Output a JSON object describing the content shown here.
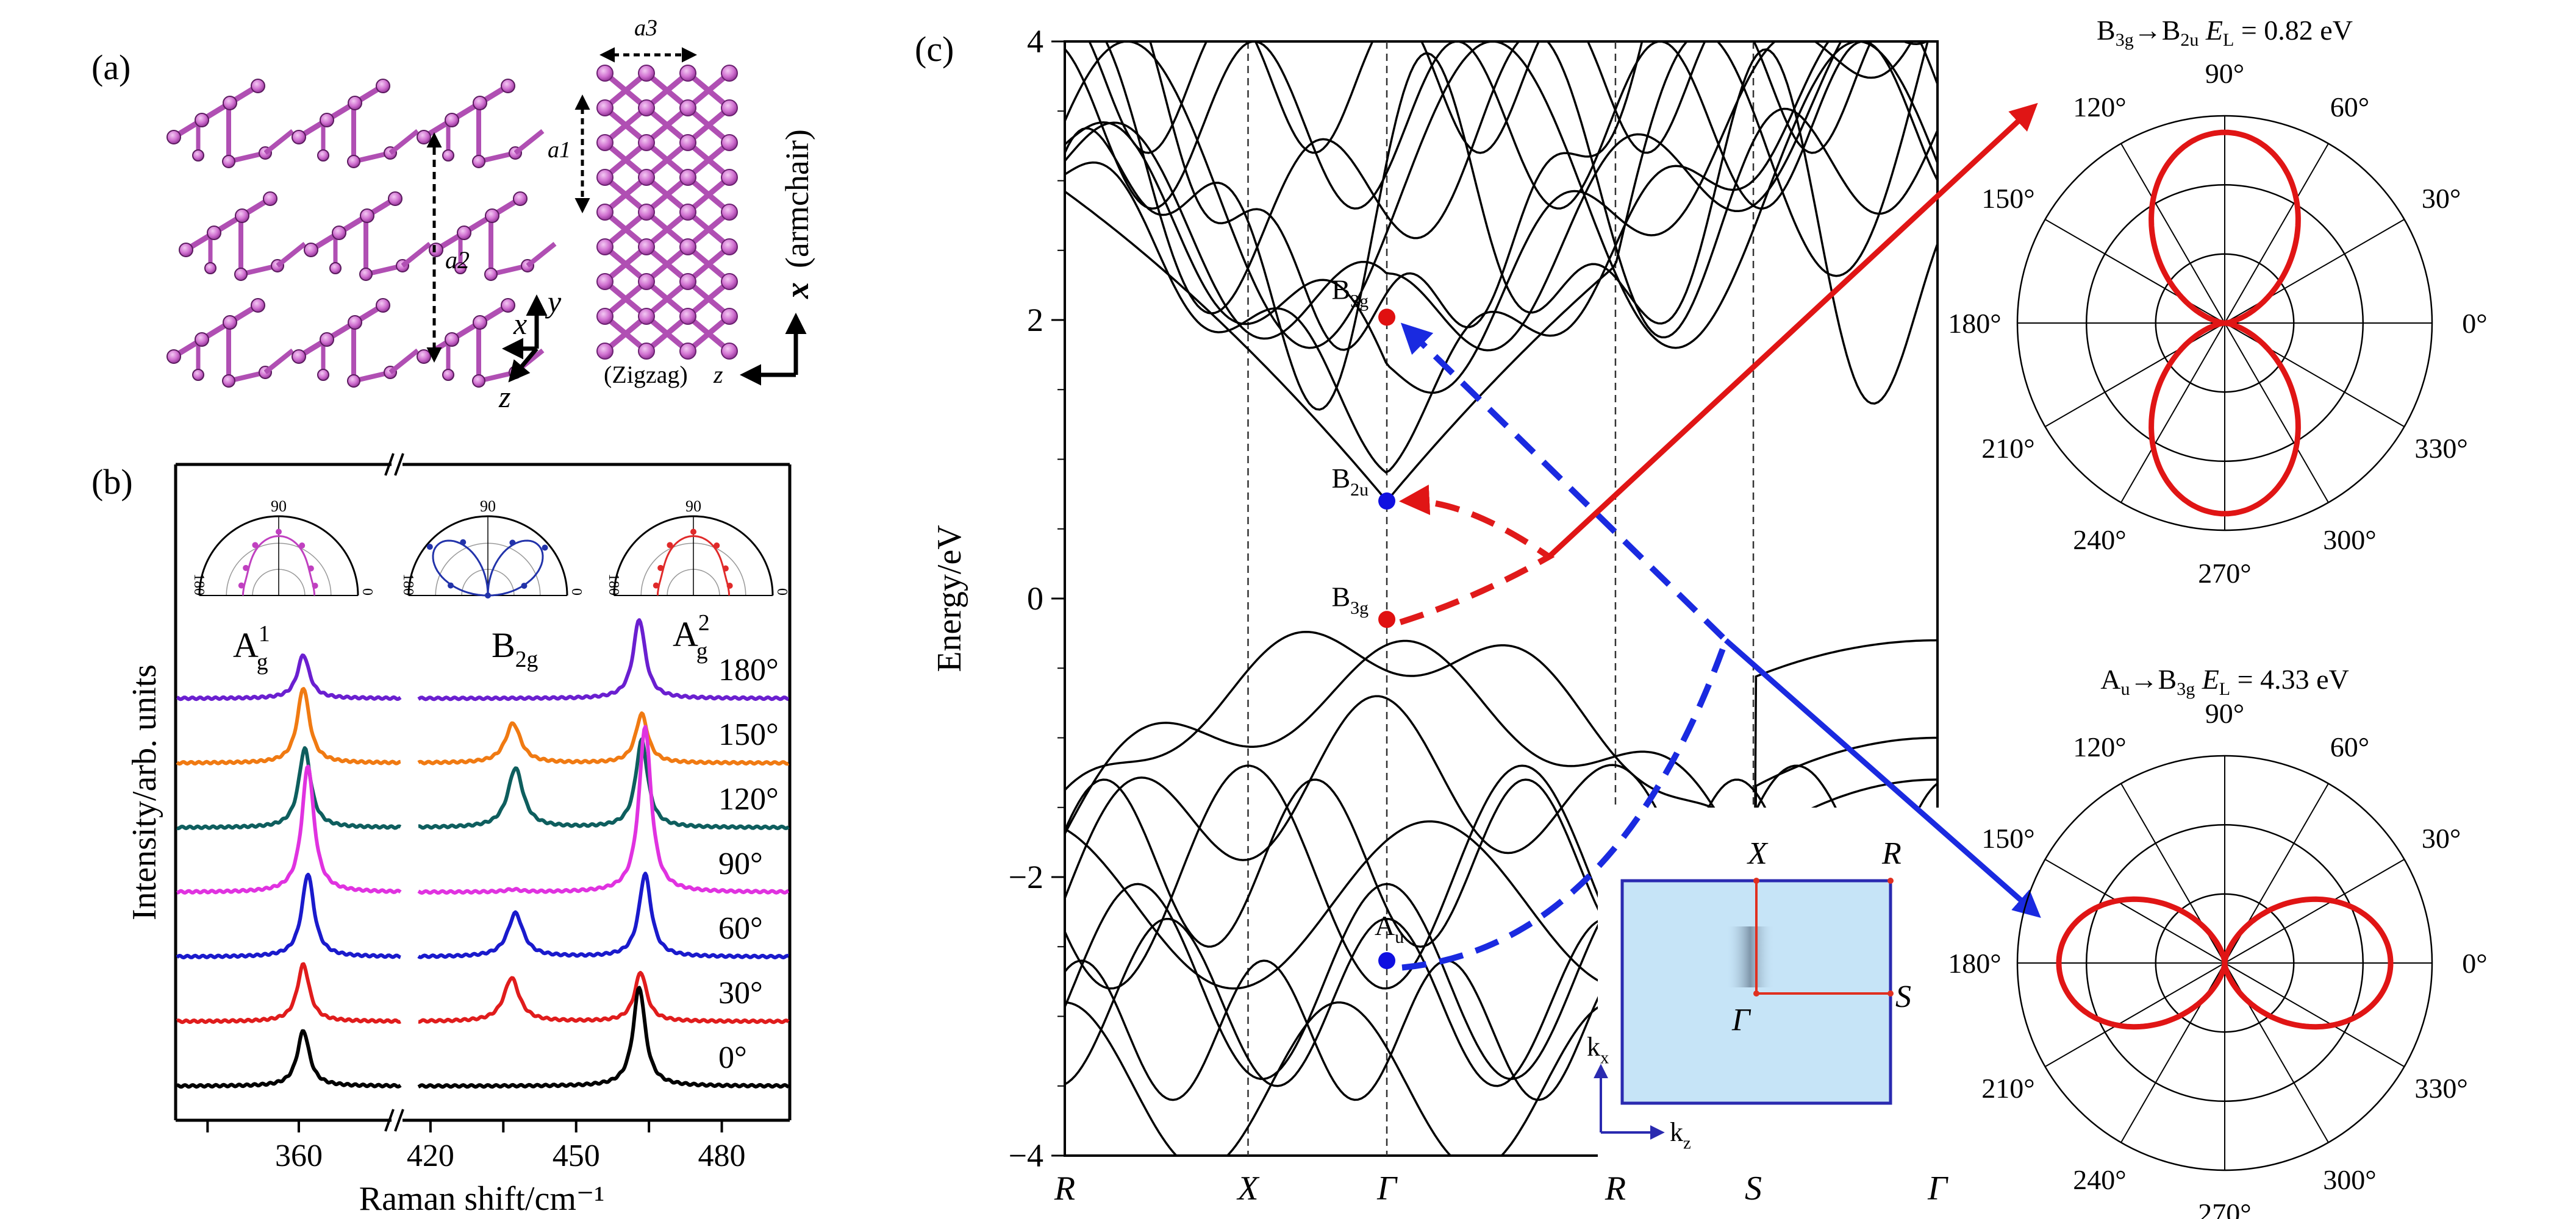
{
  "figure": {
    "panel_labels": {
      "a": "(a)",
      "b": "(b)",
      "c": "(c)"
    }
  },
  "panel_a": {
    "lattice_labels": {
      "a1": "a1",
      "a2": "a2",
      "a3": "a3"
    },
    "side_axes": {
      "x": "x",
      "y": "y",
      "z": "z"
    },
    "top_axes": {
      "zigzag": "(Zigzag)",
      "z": "z",
      "armchair": "(armchair)",
      "x": "x"
    },
    "atom_color": "#cc66cc",
    "bond_color": "#b04fb3"
  },
  "chart_data": [
    {
      "id": "raman-spectra",
      "type": "line",
      "title": "",
      "xlabel": "Raman shift/cm⁻¹",
      "ylabel": "Intensity/arb. units",
      "x_segments": [
        {
          "range": [
            333,
            383
          ],
          "ticks": [
            340,
            360
          ],
          "tick_labels": [
            "",
            "360"
          ]
        },
        {
          "range": [
            417,
            494
          ],
          "ticks": [
            420,
            435,
            450,
            465,
            480
          ],
          "tick_labels": [
            "420",
            "",
            "450",
            "",
            "480"
          ]
        }
      ],
      "axis_break_symbol": "//",
      "mode_labels": [
        {
          "text": "A",
          "sup": "1",
          "sub": "g",
          "x": 356
        },
        {
          "text": "B",
          "sub": "2g",
          "x": 437
        },
        {
          "text": "A",
          "sup": "2",
          "sub": "g",
          "x": 469
        }
      ],
      "peaks_cm": {
        "Ag1": 361,
        "B2g": 437,
        "Ag2": 463
      },
      "series": [
        {
          "name": "180°",
          "color": "#6a1fd0",
          "offset": 6,
          "amplitudes": {
            "Ag1": 0.55,
            "B2g": 0.0,
            "Ag2": 1.0
          },
          "shifts": {
            "Ag1": 0,
            "B2g": 0,
            "Ag2": 0
          }
        },
        {
          "name": "150°",
          "color": "#f07a12",
          "offset": 5,
          "amplitudes": {
            "Ag1": 0.95,
            "B2g": 0.5,
            "Ag2": 0.62
          },
          "shifts": {
            "Ag1": 0,
            "B2g": 0,
            "Ag2": 0.5
          }
        },
        {
          "name": "120°",
          "color": "#0e5e5e",
          "offset": 4,
          "amplitudes": {
            "Ag1": 1.0,
            "B2g": 0.75,
            "Ag2": 1.1
          },
          "shifts": {
            "Ag1": 0.3,
            "B2g": 0.5,
            "Ag2": 0.5
          }
        },
        {
          "name": "90°",
          "color": "#e032e0",
          "offset": 3,
          "amplitudes": {
            "Ag1": 1.6,
            "B2g": 0.03,
            "Ag2": 2.1
          },
          "shifts": {
            "Ag1": 1.0,
            "B2g": 0,
            "Ag2": 1.2
          }
        },
        {
          "name": "60°",
          "color": "#1a1acc",
          "offset": 2,
          "amplitudes": {
            "Ag1": 1.05,
            "B2g": 0.55,
            "Ag2": 1.05
          },
          "shifts": {
            "Ag1": 1.0,
            "B2g": 0.5,
            "Ag2": 1.2
          }
        },
        {
          "name": "30°",
          "color": "#e01c1c",
          "offset": 1,
          "amplitudes": {
            "Ag1": 0.72,
            "B2g": 0.55,
            "Ag2": 0.62
          },
          "shifts": {
            "Ag1": 0,
            "B2g": -0.3,
            "Ag2": 0.3
          }
        },
        {
          "name": "0°",
          "color": "#000000",
          "offset": 0,
          "amplitudes": {
            "Ag1": 0.7,
            "B2g": 0.0,
            "Ag2": 1.25
          },
          "shifts": {
            "Ag1": 0,
            "B2g": 0,
            "Ag2": 0
          }
        }
      ],
      "inset_polars": [
        {
          "mode": "Ag1",
          "color": "#c040c0",
          "labels": {
            "top": "90",
            "left": "180",
            "right": "0"
          },
          "shape": "peanut-vertical"
        },
        {
          "mode": "B2g",
          "color": "#2233aa",
          "labels": {
            "top": "90",
            "left": "180",
            "right": "0"
          },
          "shape": "four-lobe"
        },
        {
          "mode": "Ag2",
          "color": "#e02a2a",
          "labels": {
            "top": "90",
            "left": "180",
            "right": "0"
          },
          "shape": "peanut-vertical"
        }
      ]
    },
    {
      "id": "band-structure",
      "type": "line",
      "title": "",
      "xlabel": "",
      "ylabel": "Energy/eV",
      "ylim": [
        -4,
        4
      ],
      "yticks": [
        -4,
        -2,
        0,
        2,
        4
      ],
      "ytick_labels": [
        "−4",
        "−2",
        "0",
        "2",
        "4"
      ],
      "minor_tick_step": 0.5,
      "kpath": [
        {
          "label": "R",
          "pos": 0.0
        },
        {
          "label": "X",
          "pos": 0.21
        },
        {
          "label": "Γ",
          "pos": 0.369
        },
        {
          "label": "R",
          "pos": 0.631
        },
        {
          "label": "S",
          "pos": 0.789
        },
        {
          "label": "Γ",
          "pos": 1.0
        }
      ],
      "states": [
        {
          "label": "B",
          "sub": "3g",
          "k_label": "Γ",
          "energy": 2.02,
          "color": "#e01010"
        },
        {
          "label": "B",
          "sub": "2u",
          "k_label": "Γ",
          "energy": 0.7,
          "color": "#1010e0"
        },
        {
          "label": "B",
          "sub": "3g",
          "k_label": "Γ",
          "energy": -0.15,
          "color": "#e01010"
        },
        {
          "label": "A",
          "sub": "u",
          "k_label": "Γ",
          "energy": -2.6,
          "color": "#1010e0"
        }
      ],
      "transitions": [
        {
          "from": "B3g (-0.15 eV)",
          "to": "B2u (0.7 eV)",
          "color": "#e01a1a",
          "style": "dashed",
          "E_L": 0.82
        },
        {
          "from": "Au (-2.6 eV)",
          "to": "B3g (2.02 eV)",
          "color": "#1a2ae0",
          "style": "dashed",
          "E_L": 4.33
        }
      ],
      "brillouin_inset": {
        "points": [
          "X",
          "R",
          "Γ",
          "S"
        ],
        "axes": [
          "k_x",
          "k_z"
        ],
        "fill": "#c6e4f7",
        "border": "#2a2ab0",
        "path_color": "#e03020"
      }
    },
    {
      "id": "polar-B3g-B2u",
      "type": "line",
      "title": {
        "from": "B",
        "from_sub": "3g",
        "arrow": "→",
        "to": "B",
        "to_sub": "2u",
        "el": "E",
        "el_sub": "L",
        "value": " = 0.82 eV"
      },
      "polar": true,
      "angle_labels": [
        "0°",
        "30°",
        "60°",
        "90°",
        "120°",
        "150°",
        "180°",
        "210°",
        "240°",
        "270°",
        "300°",
        "330°"
      ],
      "radial_rings": [
        0.333,
        0.667,
        1.0
      ],
      "function": "I(θ) = 0.92·sin²θ",
      "max_intensity": 0.92,
      "orientation": "vertical",
      "color": "#e01515"
    },
    {
      "id": "polar-Au-B3g",
      "type": "line",
      "title": {
        "from": "A",
        "from_sub": "u",
        "arrow": "→",
        "to": "B",
        "to_sub": "3g",
        "el": "E",
        "el_sub": "L",
        "value": " = 4.33 eV"
      },
      "polar": true,
      "angle_labels": [
        "0°",
        "30°",
        "60°",
        "90°",
        "120°",
        "150°",
        "180°",
        "210°",
        "240°",
        "270°",
        "300°",
        "330°"
      ],
      "radial_rings": [
        0.333,
        0.667,
        1.0
      ],
      "function": "I(θ) = 0.8·cos²θ",
      "max_intensity": 0.8,
      "orientation": "horizontal",
      "color": "#e01515"
    }
  ]
}
